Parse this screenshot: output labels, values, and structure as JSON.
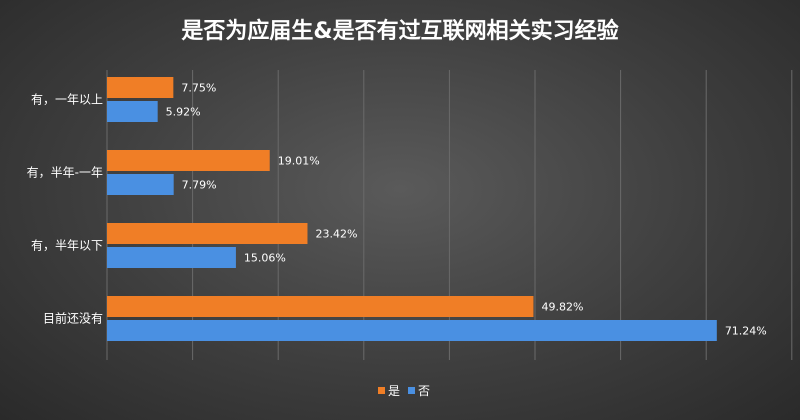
{
  "chart_data": {
    "type": "bar",
    "orientation": "horizontal",
    "title": "是否为应届生&是否有过互联网相关实习经验",
    "categories": [
      "有，一年以上",
      "有，半年-一年",
      "有，半年以下",
      "目前还没有"
    ],
    "series": [
      {
        "name": "是",
        "values": [
          7.75,
          19.01,
          23.42,
          49.82
        ],
        "labels": [
          "7.75%",
          "19.01%",
          "23.42%",
          "49.82%"
        ],
        "color": "#F07E26"
      },
      {
        "name": "否",
        "values": [
          5.92,
          7.79,
          15.06,
          71.24
        ],
        "labels": [
          "5.92%",
          "7.79%",
          "15.06%",
          "71.24%"
        ],
        "color": "#4A90E2"
      }
    ],
    "xlim": [
      0,
      80
    ],
    "grid": true,
    "legend_position": "bottom"
  }
}
